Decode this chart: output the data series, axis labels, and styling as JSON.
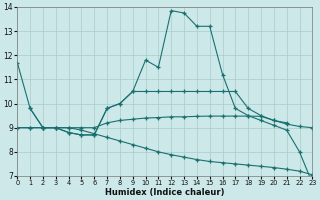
{
  "background_color": "#cce8e8",
  "grid_color": "#aacccc",
  "line_color": "#1a7070",
  "xlabel": "Humidex (Indice chaleur)",
  "xlim": [
    0,
    23
  ],
  "ylim": [
    7,
    14
  ],
  "yticks": [
    7,
    8,
    9,
    10,
    11,
    12,
    13,
    14
  ],
  "xticks": [
    0,
    1,
    2,
    3,
    4,
    5,
    6,
    7,
    8,
    9,
    10,
    11,
    12,
    13,
    14,
    15,
    16,
    17,
    18,
    19,
    20,
    21,
    22,
    23
  ],
  "series": [
    {
      "x": [
        0,
        1,
        2,
        3,
        4,
        5,
        6,
        7,
        8,
        9,
        10,
        11,
        12,
        13,
        14,
        15,
        16,
        17,
        18,
        19,
        20,
        21,
        22,
        23
      ],
      "y": [
        11.7,
        9.8,
        9.0,
        9.0,
        8.8,
        8.7,
        8.7,
        9.8,
        10.0,
        10.5,
        11.8,
        11.5,
        13.85,
        13.75,
        13.2,
        13.2,
        11.2,
        9.8,
        9.5,
        9.3,
        9.1,
        8.9,
        8.0,
        6.7
      ]
    },
    {
      "x": [
        1,
        2,
        3,
        4,
        5,
        6,
        7,
        8,
        9,
        10,
        11,
        12,
        13,
        14,
        15,
        16,
        17,
        18,
        19,
        20,
        21
      ],
      "y": [
        9.8,
        9.0,
        9.0,
        8.8,
        8.7,
        8.7,
        9.8,
        10.0,
        10.5,
        10.5,
        10.5,
        10.5,
        10.5,
        10.5,
        10.5,
        10.5,
        10.5,
        9.8,
        9.5,
        9.3,
        9.2
      ]
    },
    {
      "x": [
        0,
        1,
        2,
        3,
        4,
        5,
        6,
        7,
        8,
        9,
        10,
        11,
        12,
        13,
        14,
        15,
        16,
        17,
        18,
        19,
        20,
        21,
        22,
        23
      ],
      "y": [
        9.0,
        9.0,
        9.0,
        9.0,
        9.0,
        9.0,
        9.0,
        9.2,
        9.3,
        9.35,
        9.4,
        9.42,
        9.45,
        9.45,
        9.47,
        9.48,
        9.48,
        9.48,
        9.48,
        9.47,
        9.3,
        9.15,
        9.05,
        9.0
      ]
    },
    {
      "x": [
        0,
        1,
        2,
        3,
        4,
        5,
        6,
        7,
        8,
        9,
        10,
        11,
        12,
        13,
        14,
        15,
        16,
        17,
        18,
        19,
        20,
        21,
        22,
        23
      ],
      "y": [
        9.0,
        9.0,
        9.0,
        9.0,
        9.0,
        8.9,
        8.75,
        8.6,
        8.45,
        8.3,
        8.15,
        8.0,
        7.88,
        7.78,
        7.68,
        7.6,
        7.55,
        7.5,
        7.45,
        7.4,
        7.35,
        7.28,
        7.2,
        7.05
      ]
    }
  ]
}
